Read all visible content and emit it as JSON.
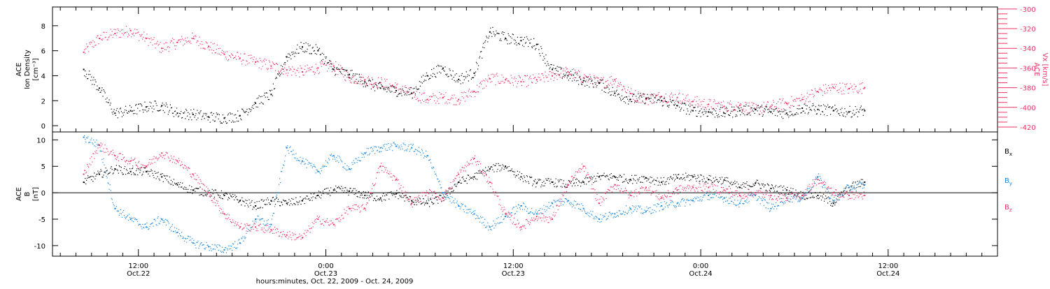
{
  "chart_data": [
    {
      "type": "scatter",
      "panel": "top",
      "left_axis": {
        "label_lines": [
          "ACE",
          "Ion Density",
          "[cm⁻³]"
        ],
        "ylim": [
          -0.5,
          9.5
        ],
        "ticks": [
          0,
          2,
          4,
          6,
          8
        ],
        "color": "#000000"
      },
      "right_axis": {
        "label_lines": [
          "ACE",
          "Vx [km/s]"
        ],
        "ylim": [
          -425,
          -298
        ],
        "ticks": [
          -300,
          -320,
          -340,
          -360,
          -380,
          -400,
          -420
        ],
        "minor_step": 5,
        "color": "#ee3366"
      },
      "series": [
        {
          "axis": "left",
          "color": "#000000",
          "points": [
            [
              8.5,
              4.5
            ],
            [
              9.5,
              3.0
            ],
            [
              10.5,
              1.0
            ],
            [
              11.5,
              1.2
            ],
            [
              12.5,
              1.5
            ],
            [
              13.5,
              1.6
            ],
            [
              14.5,
              1.0
            ],
            [
              15.5,
              0.9
            ],
            [
              16.5,
              0.7
            ],
            [
              17.5,
              0.6
            ],
            [
              18.5,
              0.8
            ],
            [
              19.5,
              1.8
            ],
            [
              20.5,
              2.5
            ],
            [
              21.5,
              5.5
            ],
            [
              22.5,
              6.3
            ],
            [
              23.5,
              6.0
            ],
            [
              24.5,
              4.5
            ],
            [
              25.5,
              4.1
            ],
            [
              26.5,
              3.5
            ],
            [
              27.5,
              3.0
            ],
            [
              28.5,
              2.8
            ],
            [
              29.5,
              2.6
            ],
            [
              30.5,
              4.0
            ],
            [
              31.5,
              4.6
            ],
            [
              32.5,
              3.7
            ],
            [
              33.5,
              4.2
            ],
            [
              34.5,
              7.5
            ],
            [
              35.5,
              7.0
            ],
            [
              36.5,
              6.8
            ],
            [
              37.5,
              6.5
            ],
            [
              38.5,
              4.5
            ],
            [
              39.5,
              4.0
            ],
            [
              40.5,
              3.6
            ],
            [
              41.5,
              3.4
            ],
            [
              42.5,
              2.6
            ],
            [
              43.5,
              2.1
            ],
            [
              44.5,
              2.2
            ],
            [
              45.5,
              2.0
            ],
            [
              46.5,
              1.6
            ],
            [
              47.5,
              1.2
            ],
            [
              48.5,
              1.1
            ],
            [
              49.5,
              1.0
            ],
            [
              50.5,
              1.2
            ],
            [
              51.5,
              1.3
            ],
            [
              52.5,
              1.1
            ],
            [
              53.5,
              1.0
            ],
            [
              54.5,
              1.4
            ],
            [
              55.5,
              1.3
            ],
            [
              56.5,
              1.2
            ],
            [
              57.5,
              1.1
            ],
            [
              58.5,
              1.2
            ]
          ]
        },
        {
          "axis": "right",
          "color": "#ee3366",
          "points": [
            [
              8.5,
              -344
            ],
            [
              9.5,
              -330
            ],
            [
              10.5,
              -325
            ],
            [
              11.5,
              -322
            ],
            [
              12.5,
              -330
            ],
            [
              13.5,
              -340
            ],
            [
              14.5,
              -334
            ],
            [
              15.5,
              -330
            ],
            [
              16.5,
              -338
            ],
            [
              17.5,
              -346
            ],
            [
              18.5,
              -350
            ],
            [
              19.5,
              -354
            ],
            [
              20.5,
              -358
            ],
            [
              21.5,
              -362
            ],
            [
              22.5,
              -364
            ],
            [
              23.5,
              -360
            ],
            [
              24.5,
              -358
            ],
            [
              25.5,
              -370
            ],
            [
              26.5,
              -372
            ],
            [
              27.5,
              -375
            ],
            [
              28.5,
              -380
            ],
            [
              29.5,
              -386
            ],
            [
              30.5,
              -392
            ],
            [
              31.5,
              -390
            ],
            [
              32.5,
              -392
            ],
            [
              33.5,
              -384
            ],
            [
              34.5,
              -371
            ],
            [
              35.5,
              -372
            ],
            [
              36.5,
              -374
            ],
            [
              37.5,
              -372
            ],
            [
              38.5,
              -368
            ],
            [
              39.5,
              -364
            ],
            [
              40.5,
              -370
            ],
            [
              41.5,
              -375
            ],
            [
              42.5,
              -372
            ],
            [
              43.5,
              -386
            ],
            [
              44.5,
              -392
            ],
            [
              45.5,
              -389
            ],
            [
              46.5,
              -390
            ],
            [
              47.5,
              -394
            ],
            [
              48.5,
              -397
            ],
            [
              49.5,
              -399
            ],
            [
              50.5,
              -398
            ],
            [
              51.5,
              -402
            ],
            [
              52.5,
              -399
            ],
            [
              53.5,
              -396
            ],
            [
              54.5,
              -392
            ],
            [
              55.5,
              -384
            ],
            [
              56.5,
              -380
            ],
            [
              57.5,
              -381
            ],
            [
              58.5,
              -380
            ]
          ]
        }
      ]
    },
    {
      "type": "scatter",
      "panel": "bottom",
      "left_axis": {
        "label_lines": [
          "ACE",
          "B",
          "[nT]"
        ],
        "ylim": [
          -12,
          11.5
        ],
        "ticks": [
          10,
          5,
          0,
          -5,
          -10
        ],
        "zero_line": true,
        "color": "#000000"
      },
      "legend": {
        "placement": "right",
        "entries": [
          {
            "label": "Bx",
            "color": "#000000"
          },
          {
            "label": "By",
            "color": "#1a88dd"
          },
          {
            "label": "Bz",
            "color": "#ee3366"
          }
        ]
      },
      "series": [
        {
          "name": "Bx",
          "color": "#000000",
          "points": [
            [
              8.5,
              2.0
            ],
            [
              9.5,
              3.5
            ],
            [
              10.5,
              4.5
            ],
            [
              11.5,
              4.0
            ],
            [
              12.5,
              4.0
            ],
            [
              13.5,
              3.0
            ],
            [
              14.5,
              1.5
            ],
            [
              15.5,
              0.5
            ],
            [
              16.5,
              0.0
            ],
            [
              17.5,
              -0.5
            ],
            [
              18.5,
              -1.5
            ],
            [
              19.5,
              -2.5
            ],
            [
              20.5,
              -1.5
            ],
            [
              21.5,
              -2.0
            ],
            [
              22.5,
              -1.5
            ],
            [
              23.5,
              -0.5
            ],
            [
              24.5,
              0.5
            ],
            [
              25.5,
              0.3
            ],
            [
              26.5,
              -0.5
            ],
            [
              27.5,
              -1.0
            ],
            [
              28.5,
              -0.2
            ],
            [
              29.5,
              -1.5
            ],
            [
              30.5,
              -2.0
            ],
            [
              31.5,
              -1.0
            ],
            [
              32.5,
              2.0
            ],
            [
              33.5,
              3.0
            ],
            [
              34.5,
              4.5
            ],
            [
              35.5,
              5.0
            ],
            [
              36.5,
              3.0
            ],
            [
              37.5,
              1.8
            ],
            [
              38.5,
              2.0
            ],
            [
              39.5,
              1.5
            ],
            [
              40.5,
              2.0
            ],
            [
              41.5,
              3.0
            ],
            [
              42.5,
              3.0
            ],
            [
              43.5,
              2.5
            ],
            [
              44.5,
              2.8
            ],
            [
              45.5,
              2.0
            ],
            [
              46.5,
              2.8
            ],
            [
              47.5,
              3.0
            ],
            [
              48.5,
              2.5
            ],
            [
              49.5,
              2.4
            ],
            [
              50.5,
              1.0
            ],
            [
              51.5,
              1.8
            ],
            [
              52.5,
              0.8
            ],
            [
              53.5,
              0.5
            ],
            [
              54.5,
              -0.5
            ],
            [
              55.5,
              -0.5
            ],
            [
              56.5,
              -2.0
            ],
            [
              57.5,
              1.0
            ],
            [
              58.5,
              2.0
            ]
          ]
        },
        {
          "name": "By",
          "color": "#1a88dd",
          "points": [
            [
              8.5,
              10.5
            ],
            [
              9.5,
              9.0
            ],
            [
              10.5,
              -3.0
            ],
            [
              11.5,
              -5.0
            ],
            [
              12.5,
              -6.5
            ],
            [
              13.5,
              -5.0
            ],
            [
              14.5,
              -7.5
            ],
            [
              15.5,
              -9.5
            ],
            [
              16.5,
              -10.2
            ],
            [
              17.5,
              -10.8
            ],
            [
              18.5,
              -9.5
            ],
            [
              19.5,
              -5.0
            ],
            [
              20.5,
              -6.0
            ],
            [
              21.5,
              8.5
            ],
            [
              22.5,
              6.0
            ],
            [
              23.5,
              4.0
            ],
            [
              24.5,
              7.0
            ],
            [
              25.5,
              4.5
            ],
            [
              26.5,
              7.5
            ],
            [
              27.5,
              8.5
            ],
            [
              28.5,
              8.8
            ],
            [
              29.5,
              8.5
            ],
            [
              30.5,
              7.0
            ],
            [
              31.5,
              0.0
            ],
            [
              32.5,
              -2.5
            ],
            [
              33.5,
              -4.0
            ],
            [
              34.5,
              -6.5
            ],
            [
              35.5,
              -4.5
            ],
            [
              36.5,
              -2.5
            ],
            [
              37.5,
              -4.0
            ],
            [
              38.5,
              -2.0
            ],
            [
              39.5,
              -1.5
            ],
            [
              40.5,
              -3.0
            ],
            [
              41.5,
              -5.0
            ],
            [
              42.5,
              -4.0
            ],
            [
              43.5,
              -3.0
            ],
            [
              44.5,
              -3.5
            ],
            [
              45.5,
              -2.5
            ],
            [
              46.5,
              -2.0
            ],
            [
              47.5,
              -1.5
            ],
            [
              48.5,
              -0.5
            ],
            [
              49.5,
              -1.0
            ],
            [
              50.5,
              -2.0
            ],
            [
              51.5,
              -0.5
            ],
            [
              52.5,
              -3.0
            ],
            [
              53.5,
              -1.0
            ],
            [
              54.5,
              -1.0
            ],
            [
              55.5,
              3.0
            ],
            [
              56.5,
              -1.5
            ],
            [
              57.5,
              1.0
            ],
            [
              58.5,
              1.5
            ]
          ]
        },
        {
          "name": "Bz",
          "color": "#ee3366",
          "points": [
            [
              8.5,
              3.5
            ],
            [
              9.5,
              9.0
            ],
            [
              10.5,
              7.0
            ],
            [
              11.5,
              6.0
            ],
            [
              12.5,
              5.0
            ],
            [
              13.5,
              7.5
            ],
            [
              14.5,
              6.0
            ],
            [
              15.5,
              3.5
            ],
            [
              16.5,
              0.0
            ],
            [
              17.5,
              -4.0
            ],
            [
              18.5,
              -6.5
            ],
            [
              19.5,
              -6.5
            ],
            [
              20.5,
              -7.0
            ],
            [
              21.5,
              -8.0
            ],
            [
              22.5,
              -8.5
            ],
            [
              23.5,
              -5.0
            ],
            [
              24.5,
              -6.0
            ],
            [
              25.5,
              -3.0
            ],
            [
              26.5,
              -3.0
            ],
            [
              27.5,
              5.0
            ],
            [
              28.5,
              2.5
            ],
            [
              29.5,
              -2.0
            ],
            [
              30.5,
              0.0
            ],
            [
              31.5,
              -1.0
            ],
            [
              32.5,
              3.5
            ],
            [
              33.5,
              6.5
            ],
            [
              34.5,
              2.0
            ],
            [
              35.5,
              -4.0
            ],
            [
              36.5,
              -6.5
            ],
            [
              37.5,
              -4.5
            ],
            [
              38.5,
              -5.0
            ],
            [
              39.5,
              1.5
            ],
            [
              40.5,
              5.0
            ],
            [
              41.5,
              -2.0
            ],
            [
              42.5,
              1.5
            ],
            [
              43.5,
              -0.5
            ],
            [
              44.5,
              1.0
            ],
            [
              45.5,
              -1.0
            ],
            [
              46.5,
              0.5
            ],
            [
              47.5,
              1.0
            ],
            [
              48.5,
              1.0
            ],
            [
              49.5,
              0.5
            ],
            [
              50.5,
              -0.5
            ],
            [
              51.5,
              0.0
            ],
            [
              52.5,
              -0.5
            ],
            [
              53.5,
              -1.0
            ],
            [
              54.5,
              -0.5
            ],
            [
              55.5,
              2.5
            ],
            [
              56.5,
              0.0
            ],
            [
              57.5,
              -0.5
            ],
            [
              58.5,
              -0.5
            ]
          ]
        }
      ]
    }
  ],
  "x_axis": {
    "range_hours": [
      6.5,
      67
    ],
    "ticks": [
      {
        "hour": 12,
        "time": "12:00",
        "date": "Oct.22"
      },
      {
        "hour": 24,
        "time": "0:00",
        "date": "Oct.23"
      },
      {
        "hour": 36,
        "time": "12:00",
        "date": "Oct.23"
      },
      {
        "hour": 48,
        "time": "0:00",
        "date": "Oct.24"
      },
      {
        "hour": 60,
        "time": "12:00",
        "date": "Oct.24"
      }
    ],
    "minor_step_hours": 1,
    "label": "hours:minutes, Oct. 22, 2009 - Oct. 24, 2009"
  },
  "colors": {
    "black": "#000000",
    "pink": "#ee3366",
    "blue": "#1a88dd"
  }
}
